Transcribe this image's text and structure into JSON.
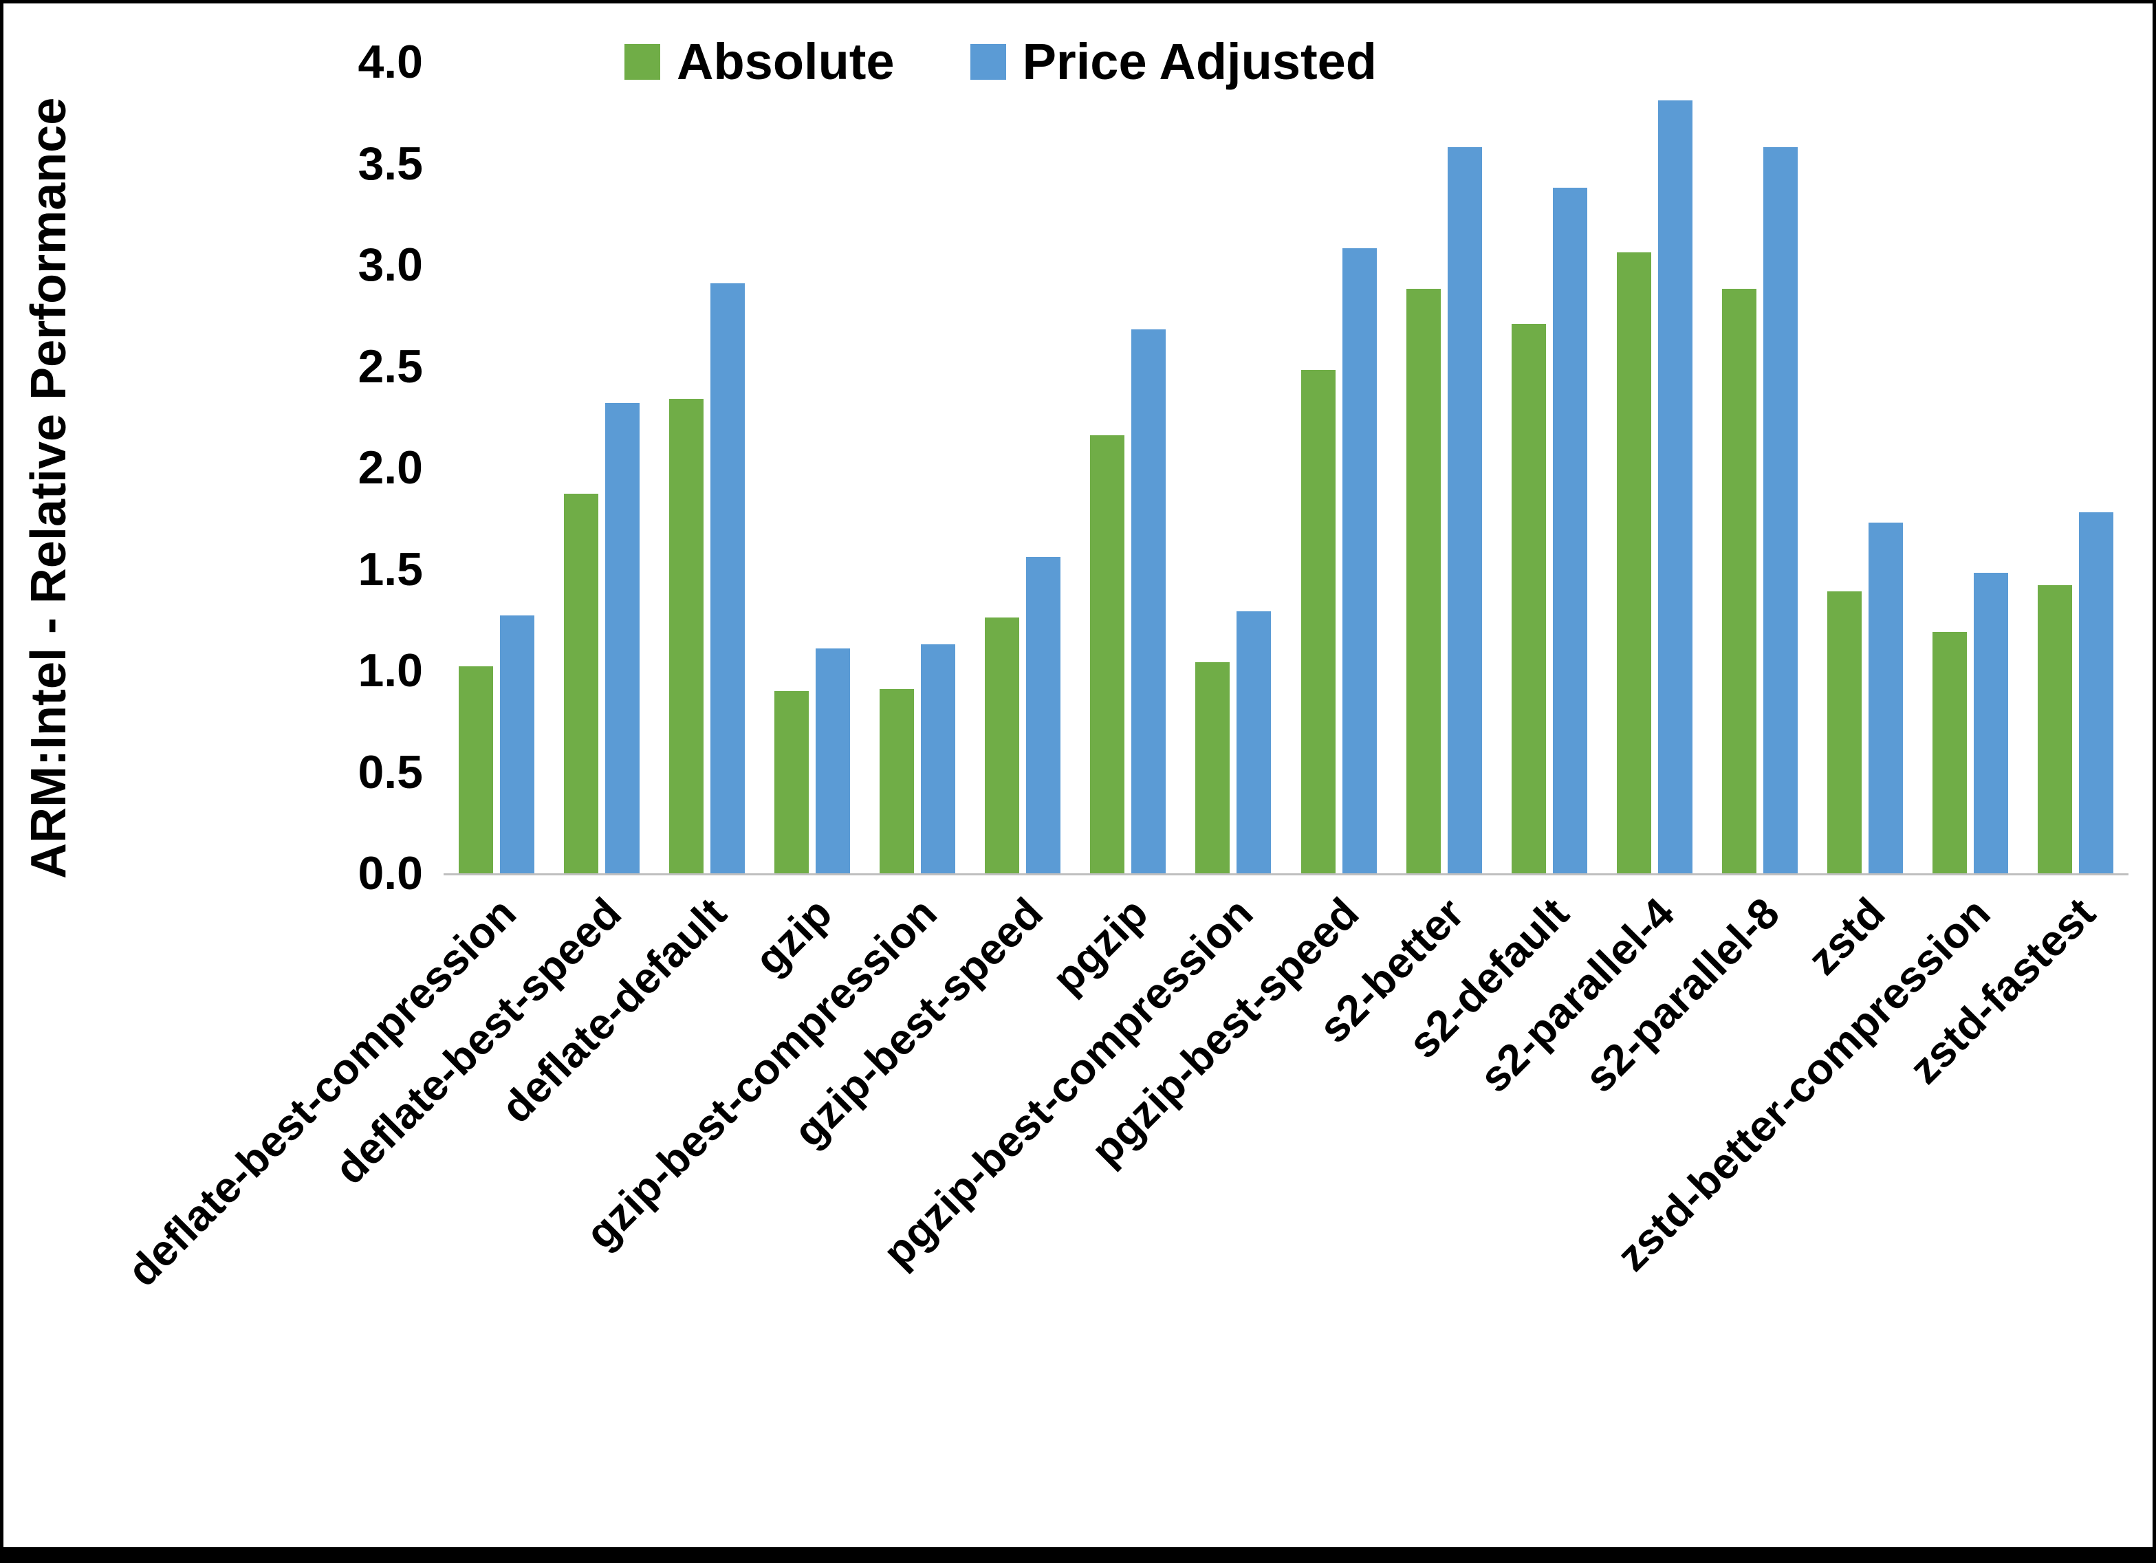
{
  "chart_data": {
    "type": "bar",
    "title": "",
    "ylabel": "ARM:Intel - Relative Performance",
    "xlabel": "",
    "ylim": [
      0,
      4.0
    ],
    "yticks": [
      0.0,
      0.5,
      1.0,
      1.5,
      2.0,
      2.5,
      3.0,
      3.5,
      4.0
    ],
    "grid": false,
    "legend_position": "top-center",
    "categories": [
      "deflate-best-compression",
      "deflate-best-speed",
      "deflate-default",
      "gzip",
      "gzip-best-compression",
      "gzip-best-speed",
      "pgzip",
      "pgzip-best-compression",
      "pgzip-best-speed",
      "s2-better",
      "s2-default",
      "s2-parallel-4",
      "s2-parallel-8",
      "zstd",
      "zstd-better-compression",
      "zstd-fastest"
    ],
    "series": [
      {
        "name": "Absolute",
        "color": "#70AD47",
        "values": [
          1.02,
          1.87,
          2.34,
          0.9,
          0.91,
          1.26,
          2.16,
          1.04,
          2.48,
          2.88,
          2.71,
          3.06,
          2.88,
          1.39,
          1.19,
          1.42
        ]
      },
      {
        "name": "Price Adjusted",
        "color": "#5B9BD5",
        "values": [
          1.27,
          2.32,
          2.91,
          1.11,
          1.13,
          1.56,
          2.68,
          1.29,
          3.08,
          3.58,
          3.38,
          3.81,
          3.58,
          1.73,
          1.48,
          1.78
        ]
      }
    ]
  }
}
